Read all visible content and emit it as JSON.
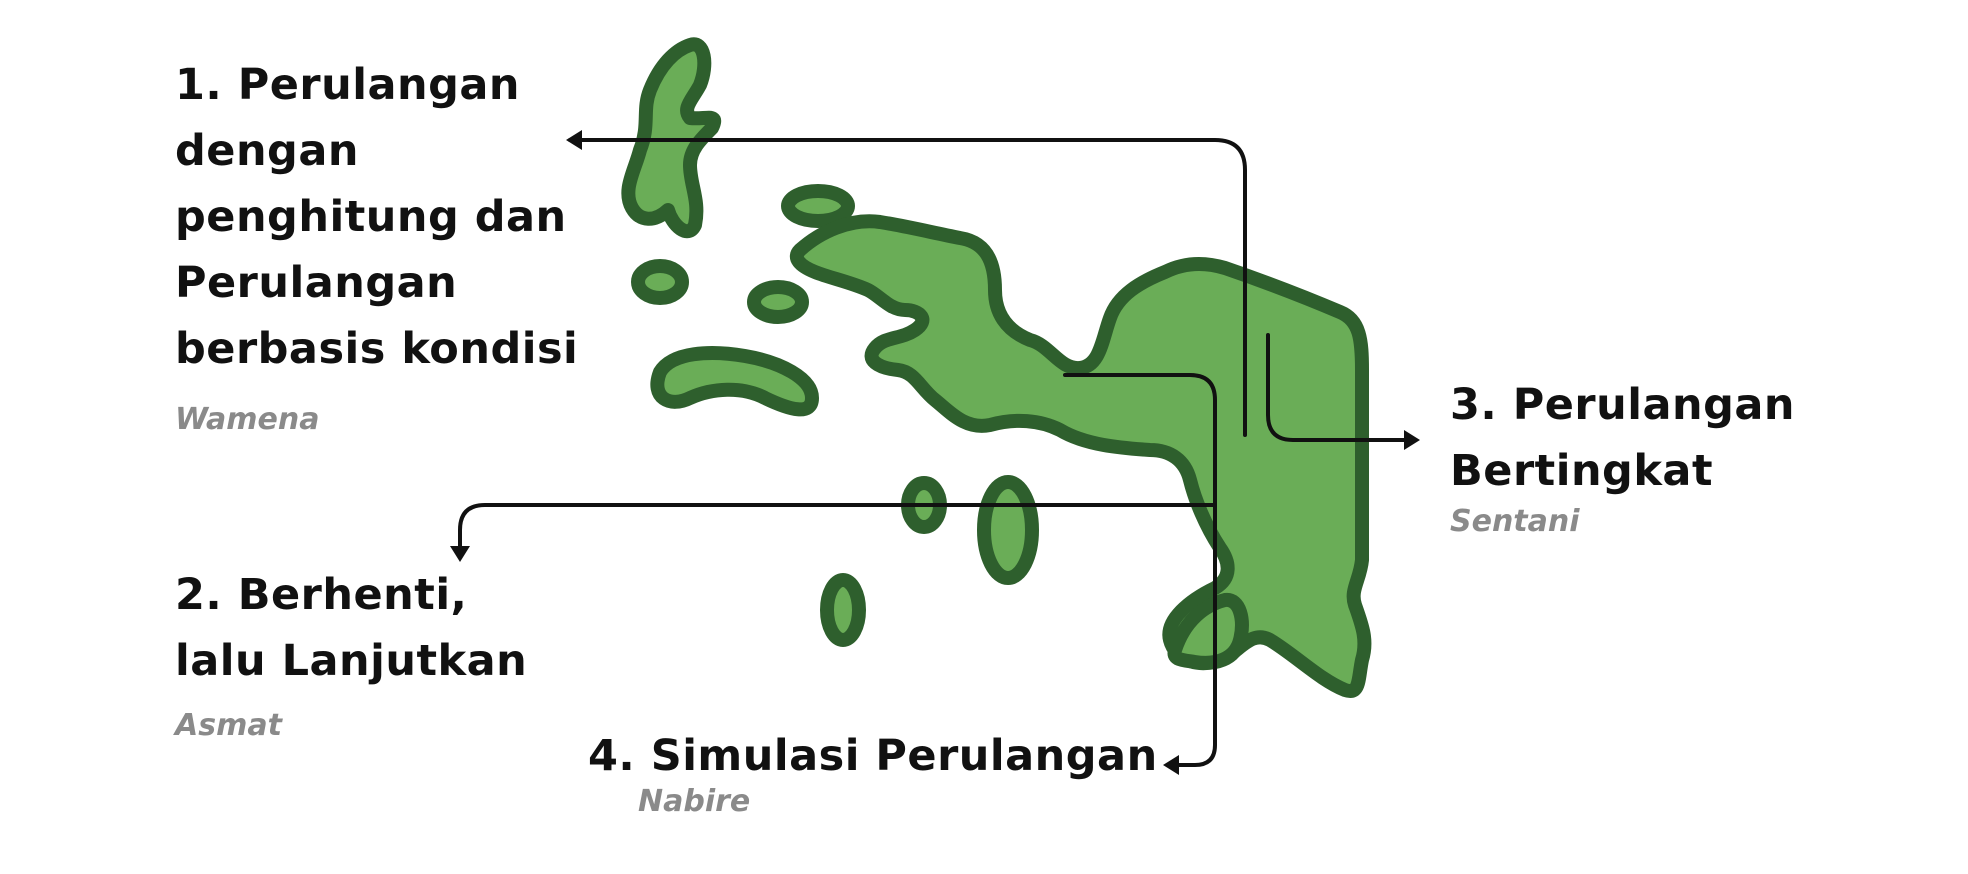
{
  "colors": {
    "land_fill": "#6aad57",
    "land_outline": "#2e5f2d",
    "connector": "#111111",
    "caption": "#8a8a8a",
    "title_text": "#111111"
  },
  "items": [
    {
      "title_lines": [
        "1. Perulangan",
        "dengan",
        "penghitung dan",
        "Perulangan",
        "berbasis kondisi"
      ],
      "place": "Wamena"
    },
    {
      "title_lines": [
        "2. Berhenti,",
        "lalu Lanjutkan"
      ],
      "place": "Asmat"
    },
    {
      "title_lines": [
        "3. Perulangan",
        "Bertingkat"
      ],
      "place": "Sentani"
    },
    {
      "title_lines": [
        "4. Simulasi Perulangan"
      ],
      "place": "Nabire"
    }
  ]
}
